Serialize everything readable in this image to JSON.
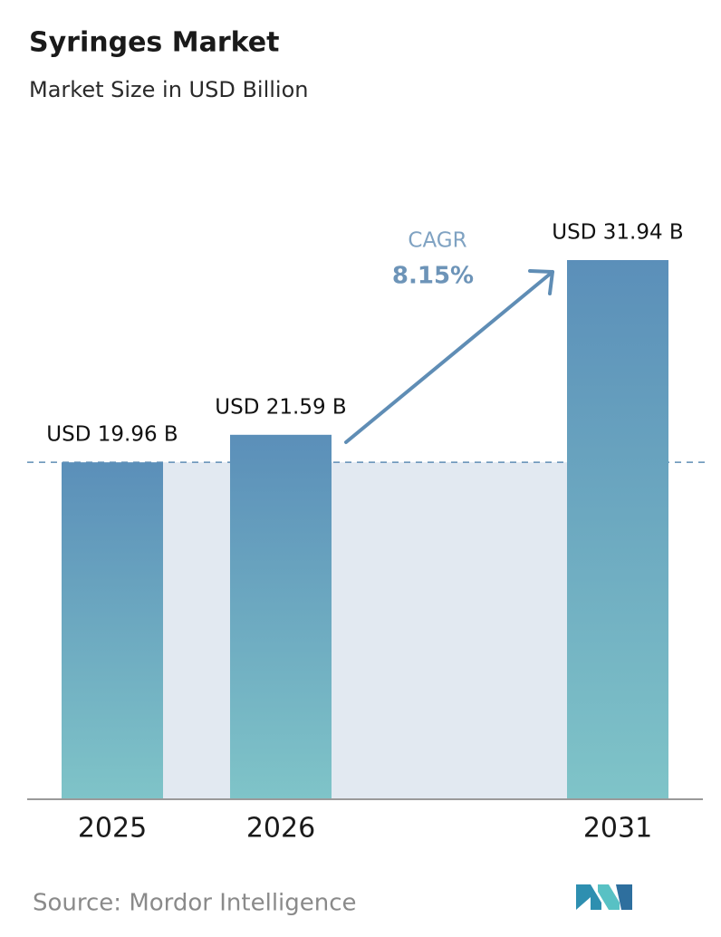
{
  "chart_data": {
    "type": "bar",
    "title": "Syringes Market",
    "subtitle": "Market Size in USD Billion",
    "categories": [
      "2025",
      "2026",
      "2031"
    ],
    "values": [
      19.96,
      21.59,
      31.94
    ],
    "value_labels": [
      "USD 19.96 B",
      "USD 21.59 B",
      "USD 31.94 B"
    ],
    "color": "#5b8fb9",
    "annotation": {
      "label": "CAGR",
      "value": "8.15%"
    },
    "source": "Source: Mordor Intelligence"
  }
}
